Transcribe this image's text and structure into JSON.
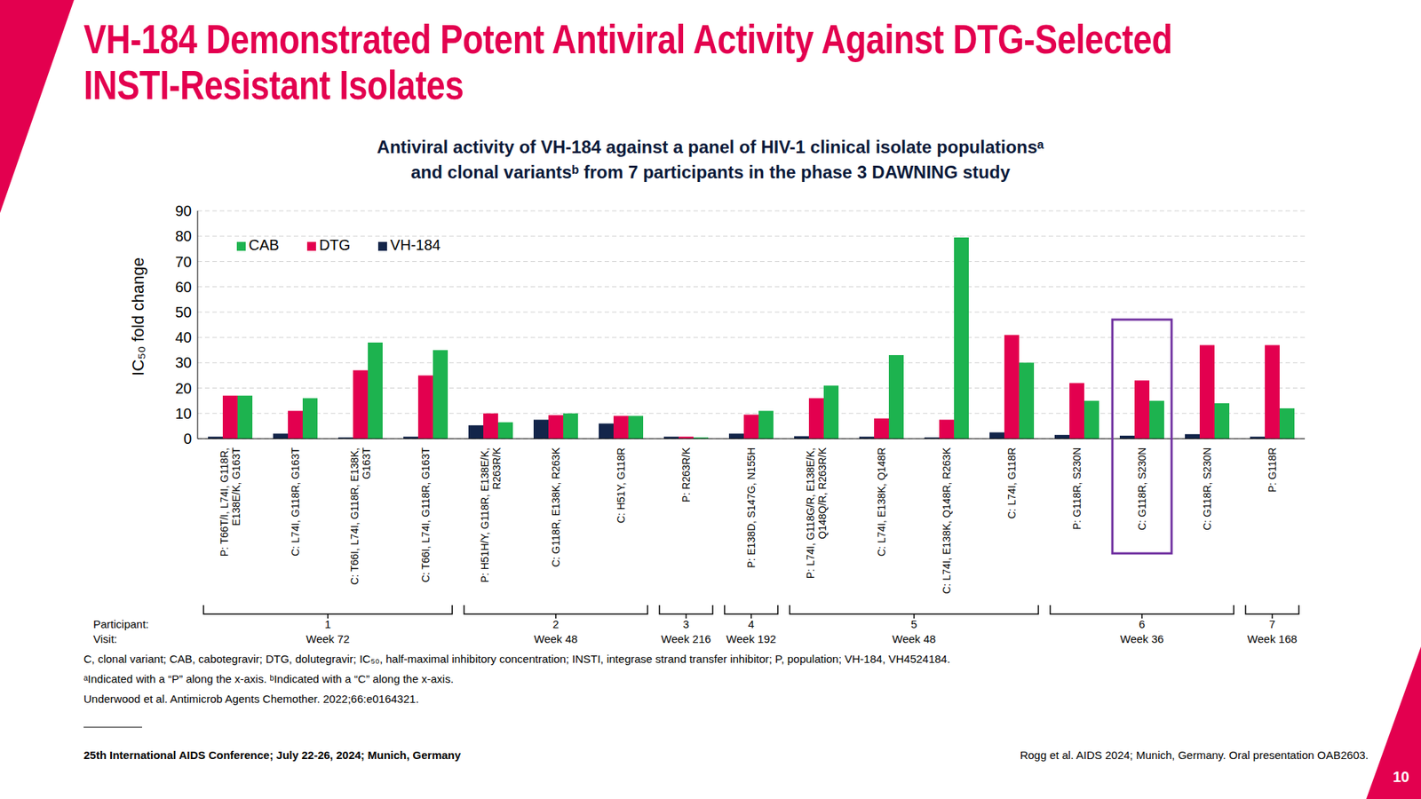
{
  "chart_data": {
    "type": "bar",
    "title": "Antiviral activity of VH-184 against a panel of HIV-1 clinical isolate populationsᵃ\nand clonal variantsᵇ from 7 participants in the phase 3 DAWNING study",
    "y_label": "IC₅₀ fold change",
    "categories": [
      "P: T66T/I, L74I, G118R, E138E/K, G163T",
      "C: L74I, G118R, G163T",
      "C: T66I, L74I, G118R, E138K, G163T",
      "C: T66I, L74I, G118R, G163T",
      "P: H51H/Y, G118R, E138E/K, R263R/K",
      "C: G118R, E138K, R263K",
      "C: H51Y, G118R",
      "P: R263R/K",
      "P: E138D, S147G, N155H",
      "P: L74I, G118G/R, E138E/K, Q148Q/R, R263R/K",
      "C: L74I, E138K, Q148R",
      "C: L74I, E138K, Q148R, R263K",
      "C: L74I, G118R",
      "P: G118R, S230N",
      "C: G118R, S230N",
      "C: G118R, S230N",
      "P: G118R"
    ],
    "series": [
      {
        "name": "VH-184",
        "color": "#13254a",
        "values": [
          0.8,
          2,
          0.5,
          0.8,
          5.3,
          7.5,
          6,
          0.8,
          2,
          1,
          0.8,
          0.5,
          2.5,
          1.5,
          1.2,
          1.8,
          0.8
        ]
      },
      {
        "name": "DTG",
        "color": "#e3004f",
        "values": [
          17,
          11,
          27,
          25,
          10,
          9.3,
          9,
          0.8,
          9.5,
          16,
          8,
          7.5,
          41,
          22,
          23,
          37,
          37
        ]
      },
      {
        "name": "CAB",
        "color": "#1db34f",
        "values": [
          17,
          16,
          38,
          35,
          6.5,
          10,
          9,
          0.5,
          11,
          21,
          33,
          79.5,
          30,
          15,
          15,
          14,
          12
        ]
      }
    ],
    "ylim": [
      0,
      90
    ],
    "yticks": [
      0,
      10,
      20,
      30,
      40,
      50,
      60,
      70,
      80,
      90
    ],
    "grid": true,
    "legend": "upper left",
    "participants": [
      "1",
      "1",
      "1",
      "1",
      "2",
      "2",
      "2",
      "3",
      "4",
      "5",
      "5",
      "5",
      "5",
      "6",
      "6",
      "6",
      "7"
    ],
    "visits": [
      "Week 72",
      "Week 72",
      "Week 72",
      "Week 72",
      "Week 48",
      "Week 48",
      "Week 48",
      "Week 216",
      "Week 192",
      "Week 48",
      "Week 48",
      "Week 48",
      "Week 48",
      "Week 36",
      "Week 36",
      "Week 36",
      "Week 168"
    ],
    "highlighted": [
      false,
      false,
      false,
      false,
      false,
      false,
      false,
      false,
      false,
      false,
      false,
      false,
      false,
      false,
      true,
      false,
      false
    ]
  },
  "slide": {
    "title": "VH-184 Demonstrated Potent Antiviral Activity Against DTG-Selected\nINSTI-Resistant Isolates",
    "row_labels": [
      "Participant:",
      "Visit:"
    ],
    "footnotes": [
      "C, clonal variant; CAB, cabotegravir; DTG, dolutegravir; IC₅₀, half-maximal inhibitory concentration; INSTI, integrase strand transfer inhibitor; P, population; VH-184, VH4524184.",
      "ᵃIndicated with a “P” along the x-axis. ᵇIndicated with a “C” along the x-axis.",
      "Underwood et al. Antimicrob Agents Chemother. 2022;66:e0164321."
    ],
    "conference": "25th International AIDS Conference; July 22-26, 2024; Munich, Germany",
    "citation": "Rogg et al. AIDS 2024; Munich, Germany. Oral presentation OAB2603.",
    "page": "10"
  }
}
